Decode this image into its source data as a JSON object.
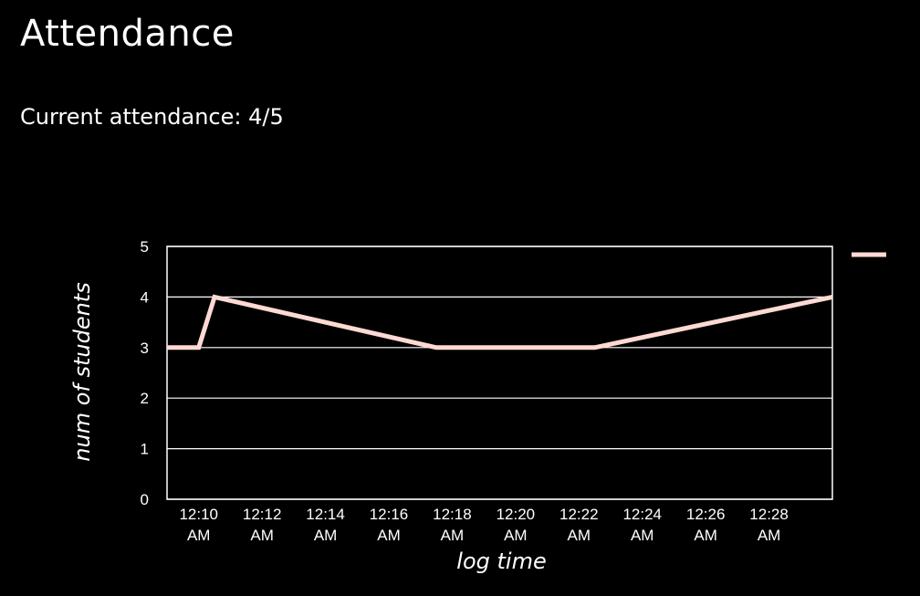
{
  "header": {
    "title": "Attendance"
  },
  "attendance": {
    "label": "Current attendance:",
    "value": "4/5"
  },
  "chart_data": {
    "type": "line",
    "title": "",
    "xlabel": "log time",
    "ylabel": "num of students",
    "ylim": [
      0,
      5
    ],
    "yticks": [
      0,
      1,
      2,
      3,
      4,
      5
    ],
    "xlim": [
      "12:09",
      "12:30"
    ],
    "xticks": [
      {
        "t": "12:10",
        "label": [
          "12:10",
          "AM"
        ]
      },
      {
        "t": "12:12",
        "label": [
          "12:12",
          "AM"
        ]
      },
      {
        "t": "12:14",
        "label": [
          "12:14",
          "AM"
        ]
      },
      {
        "t": "12:16",
        "label": [
          "12:16",
          "AM"
        ]
      },
      {
        "t": "12:18",
        "label": [
          "12:18",
          "AM"
        ]
      },
      {
        "t": "12:20",
        "label": [
          "12:20",
          "AM"
        ]
      },
      {
        "t": "12:22",
        "label": [
          "12:22",
          "AM"
        ]
      },
      {
        "t": "12:24",
        "label": [
          "12:24",
          "AM"
        ]
      },
      {
        "t": "12:26",
        "label": [
          "12:26",
          "AM"
        ]
      },
      {
        "t": "12:28",
        "label": [
          "12:28",
          "AM"
        ]
      }
    ],
    "grid": true,
    "legend": "right",
    "series": [
      {
        "color": "#ffd9d3",
        "points": [
          {
            "x": "12:09",
            "y": 3
          },
          {
            "x": "12:10",
            "y": 3
          },
          {
            "x": "12:10.5",
            "y": 4
          },
          {
            "x": "12:17.5",
            "y": 3
          },
          {
            "x": "12:22.5",
            "y": 3
          },
          {
            "x": "12:30",
            "y": 4
          }
        ]
      }
    ],
    "colors": {
      "background": "#000000",
      "axis": "#ffffff",
      "grid": "#ffffff",
      "line": "#ffd9d3"
    }
  }
}
